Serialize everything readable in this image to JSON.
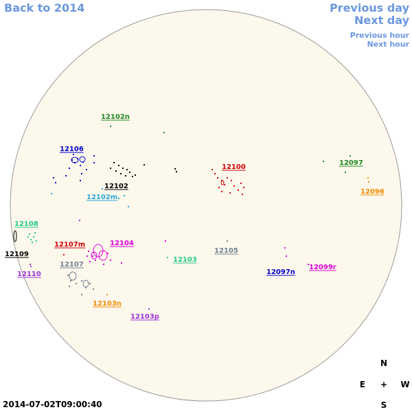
{
  "nav": {
    "back": "Back to 2014",
    "previous_day": "Previous day",
    "next_day": "Next day",
    "previous_hour": "Previous hour",
    "next_hour": "Next hour"
  },
  "timestamp": "2014-07-02T09:00:40",
  "compass": {
    "n": "N",
    "e": "E",
    "center": "+",
    "w": "W",
    "s": "S"
  },
  "colors": {
    "disk": "#fdf8ec",
    "nav": "#6b97df",
    "green": "#1e8a1e",
    "blue": "#0000cc",
    "black": "#000000",
    "cyan": "#2aa7d8",
    "red": "#cc0000",
    "orange": "#f08a00",
    "teal": "#22cc88",
    "magenta": "#dd00dd",
    "gray": "#708090",
    "purple": "#9b30d9"
  },
  "regions": [
    {
      "id": "12102n",
      "label": "12102n",
      "color": "green"
    },
    {
      "id": "12106",
      "label": "12106",
      "color": "blue"
    },
    {
      "id": "12102",
      "label": "12102",
      "color": "black"
    },
    {
      "id": "12102m",
      "label": "12102m",
      "color": "cyan"
    },
    {
      "id": "12100",
      "label": "12100",
      "color": "red"
    },
    {
      "id": "12097",
      "label": "12097",
      "color": "green"
    },
    {
      "id": "12096",
      "label": "12096",
      "color": "orange"
    },
    {
      "id": "12108",
      "label": "12108",
      "color": "teal"
    },
    {
      "id": "12109",
      "label": "12109",
      "color": "black"
    },
    {
      "id": "12110",
      "label": "12110",
      "color": "purple"
    },
    {
      "id": "12107m",
      "label": "12107m",
      "color": "red"
    },
    {
      "id": "12104",
      "label": "12104",
      "color": "magenta"
    },
    {
      "id": "12107",
      "label": "12107",
      "color": "gray"
    },
    {
      "id": "12103",
      "label": "12103",
      "color": "teal"
    },
    {
      "id": "12105",
      "label": "12105",
      "color": "gray"
    },
    {
      "id": "12097n",
      "label": "12097n",
      "color": "blue"
    },
    {
      "id": "12099r",
      "label": "12099r",
      "color": "magenta"
    },
    {
      "id": "12103n",
      "label": "12103n",
      "color": "orange"
    },
    {
      "id": "12103p",
      "label": "12103p",
      "color": "purple"
    }
  ]
}
